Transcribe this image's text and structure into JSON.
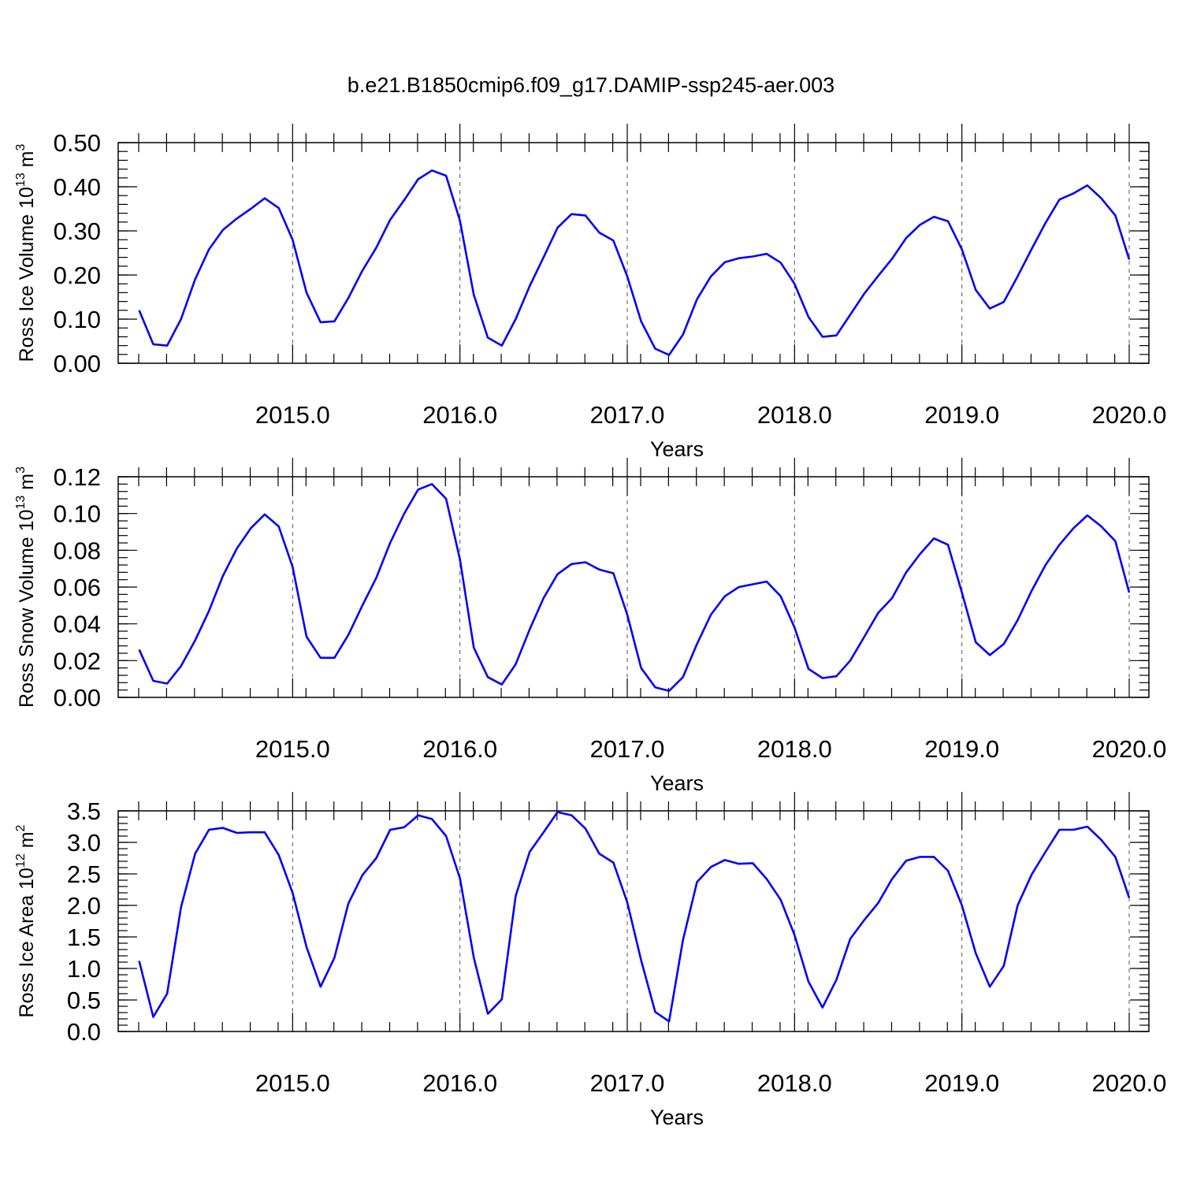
{
  "title": "b.e21.B1850cmip6.f09_g17.DAMIP-ssp245-aer.003",
  "line_color": "#0000ff",
  "chart_data": [
    {
      "type": "line",
      "ylabel": "Ross Ice Volume 10",
      "ylabel_exp": "13",
      "ylabel_unit": "m",
      "ylabel_unit_exp": "3",
      "xlabel": "Years",
      "xlim": [
        2014.08,
        2020.0
      ],
      "ylim": [
        0.0,
        0.5
      ],
      "xticks": [
        2015.0,
        2016.0,
        2017.0,
        2018.0,
        2019.0,
        2020.0
      ],
      "xtick_labels": [
        "2015.0",
        "2016.0",
        "2017.0",
        "2018.0",
        "2019.0",
        "2020.0"
      ],
      "yticks": [
        0.0,
        0.1,
        0.2,
        0.3,
        0.4,
        0.5
      ],
      "ytick_labels": [
        "0.00",
        "0.10",
        "0.20",
        "0.30",
        "0.40",
        "0.50"
      ],
      "yminor": 0.02,
      "x": [
        2014.083,
        2014.167,
        2014.25,
        2014.333,
        2014.417,
        2014.5,
        2014.583,
        2014.667,
        2014.75,
        2014.833,
        2014.917,
        2015.0,
        2015.083,
        2015.167,
        2015.25,
        2015.333,
        2015.417,
        2015.5,
        2015.583,
        2015.667,
        2015.75,
        2015.833,
        2015.917,
        2016.0,
        2016.083,
        2016.167,
        2016.25,
        2016.333,
        2016.417,
        2016.5,
        2016.583,
        2016.667,
        2016.75,
        2016.833,
        2016.917,
        2017.0,
        2017.083,
        2017.167,
        2017.25,
        2017.333,
        2017.417,
        2017.5,
        2017.583,
        2017.667,
        2017.75,
        2017.833,
        2017.917,
        2018.0,
        2018.083,
        2018.167,
        2018.25,
        2018.333,
        2018.417,
        2018.5,
        2018.583,
        2018.667,
        2018.75,
        2018.833,
        2018.917,
        2019.0,
        2019.083,
        2019.167,
        2019.25,
        2019.333,
        2019.417,
        2019.5,
        2019.583,
        2019.667,
        2019.75,
        2019.833,
        2019.917,
        2020.0
      ],
      "series": [
        {
          "values": [
            0.12,
            0.043,
            0.04,
            0.1,
            0.19,
            0.258,
            0.302,
            0.328,
            0.35,
            0.374,
            0.352,
            0.28,
            0.16,
            0.093,
            0.095,
            0.148,
            0.21,
            0.262,
            0.325,
            0.37,
            0.417,
            0.437,
            0.425,
            0.323,
            0.155,
            0.058,
            0.04,
            0.1,
            0.175,
            0.24,
            0.307,
            0.338,
            0.335,
            0.296,
            0.278,
            0.197,
            0.095,
            0.033,
            0.019,
            0.065,
            0.145,
            0.197,
            0.229,
            0.238,
            0.242,
            0.248,
            0.228,
            0.18,
            0.105,
            0.06,
            0.063,
            0.11,
            0.158,
            0.198,
            0.237,
            0.284,
            0.314,
            0.332,
            0.322,
            0.258,
            0.166,
            0.124,
            0.139,
            0.197,
            0.259,
            0.318,
            0.371,
            0.385,
            0.403,
            0.374,
            0.335,
            0.235
          ]
        }
      ]
    },
    {
      "type": "line",
      "ylabel": "Ross Snow Volume 10",
      "ylabel_exp": "13",
      "ylabel_unit": "m",
      "ylabel_unit_exp": "3",
      "xlabel": "Years",
      "xlim": [
        2014.08,
        2020.0
      ],
      "ylim": [
        0.0,
        0.12
      ],
      "xticks": [
        2015.0,
        2016.0,
        2017.0,
        2018.0,
        2019.0,
        2020.0
      ],
      "xtick_labels": [
        "2015.0",
        "2016.0",
        "2017.0",
        "2018.0",
        "2019.0",
        "2020.0"
      ],
      "yticks": [
        0.0,
        0.02,
        0.04,
        0.06,
        0.08,
        0.1,
        0.12
      ],
      "ytick_labels": [
        "0.00",
        "0.02",
        "0.04",
        "0.06",
        "0.08",
        "0.10",
        "0.12"
      ],
      "yminor": 0.004,
      "x": [
        2014.083,
        2014.167,
        2014.25,
        2014.333,
        2014.417,
        2014.5,
        2014.583,
        2014.667,
        2014.75,
        2014.833,
        2014.917,
        2015.0,
        2015.083,
        2015.167,
        2015.25,
        2015.333,
        2015.417,
        2015.5,
        2015.583,
        2015.667,
        2015.75,
        2015.833,
        2015.917,
        2016.0,
        2016.083,
        2016.167,
        2016.25,
        2016.333,
        2016.417,
        2016.5,
        2016.583,
        2016.667,
        2016.75,
        2016.833,
        2016.917,
        2017.0,
        2017.083,
        2017.167,
        2017.25,
        2017.333,
        2017.417,
        2017.5,
        2017.583,
        2017.667,
        2017.75,
        2017.833,
        2017.917,
        2018.0,
        2018.083,
        2018.167,
        2018.25,
        2018.333,
        2018.417,
        2018.5,
        2018.583,
        2018.667,
        2018.75,
        2018.833,
        2018.917,
        2019.0,
        2019.083,
        2019.167,
        2019.25,
        2019.333,
        2019.417,
        2019.5,
        2019.583,
        2019.667,
        2019.75,
        2019.833,
        2019.917,
        2020.0
      ],
      "series": [
        {
          "values": [
            0.026,
            0.009,
            0.0075,
            0.017,
            0.031,
            0.047,
            0.066,
            0.081,
            0.092,
            0.0995,
            0.093,
            0.071,
            0.033,
            0.0215,
            0.0215,
            0.034,
            0.05,
            0.065,
            0.084,
            0.1,
            0.113,
            0.116,
            0.108,
            0.075,
            0.027,
            0.011,
            0.007,
            0.018,
            0.037,
            0.054,
            0.067,
            0.0725,
            0.0735,
            0.0695,
            0.0675,
            0.045,
            0.016,
            0.0055,
            0.0035,
            0.011,
            0.029,
            0.045,
            0.055,
            0.06,
            0.0615,
            0.063,
            0.055,
            0.038,
            0.0155,
            0.0105,
            0.0115,
            0.02,
            0.033,
            0.046,
            0.054,
            0.068,
            0.078,
            0.0865,
            0.083,
            0.057,
            0.03,
            0.023,
            0.029,
            0.042,
            0.058,
            0.072,
            0.083,
            0.092,
            0.099,
            0.093,
            0.085,
            0.057
          ]
        }
      ]
    },
    {
      "type": "line",
      "ylabel": "Ross Ice Area 10",
      "ylabel_exp": "12",
      "ylabel_unit": "m",
      "ylabel_unit_exp": "2",
      "xlabel": "Years",
      "xlim": [
        2014.08,
        2020.0
      ],
      "ylim": [
        0.0,
        3.5
      ],
      "xticks": [
        2015.0,
        2016.0,
        2017.0,
        2018.0,
        2019.0,
        2020.0
      ],
      "xtick_labels": [
        "2015.0",
        "2016.0",
        "2017.0",
        "2018.0",
        "2019.0",
        "2020.0"
      ],
      "yticks": [
        0.0,
        0.5,
        1.0,
        1.5,
        2.0,
        2.5,
        3.0,
        3.5
      ],
      "ytick_labels": [
        "0.0",
        "0.5",
        "1.0",
        "1.5",
        "2.0",
        "2.5",
        "3.0",
        "3.5"
      ],
      "yminor": 0.1,
      "x": [
        2014.083,
        2014.167,
        2014.25,
        2014.333,
        2014.417,
        2014.5,
        2014.583,
        2014.667,
        2014.75,
        2014.833,
        2014.917,
        2015.0,
        2015.083,
        2015.167,
        2015.25,
        2015.333,
        2015.417,
        2015.5,
        2015.583,
        2015.667,
        2015.75,
        2015.833,
        2015.917,
        2016.0,
        2016.083,
        2016.167,
        2016.25,
        2016.333,
        2016.417,
        2016.5,
        2016.583,
        2016.667,
        2016.75,
        2016.833,
        2016.917,
        2017.0,
        2017.083,
        2017.167,
        2017.25,
        2017.333,
        2017.417,
        2017.5,
        2017.583,
        2017.667,
        2017.75,
        2017.833,
        2017.917,
        2018.0,
        2018.083,
        2018.167,
        2018.25,
        2018.333,
        2018.417,
        2018.5,
        2018.583,
        2018.667,
        2018.75,
        2018.833,
        2018.917,
        2019.0,
        2019.083,
        2019.167,
        2019.25,
        2019.333,
        2019.417,
        2019.5,
        2019.583,
        2019.667,
        2019.75,
        2019.833,
        2019.917,
        2020.0
      ],
      "series": [
        {
          "values": [
            1.12,
            0.23,
            0.6,
            1.97,
            2.82,
            3.2,
            3.23,
            3.15,
            3.16,
            3.16,
            2.8,
            2.2,
            1.34,
            0.71,
            1.17,
            2.03,
            2.48,
            2.75,
            3.2,
            3.24,
            3.43,
            3.37,
            3.1,
            2.43,
            1.17,
            0.28,
            0.51,
            2.15,
            2.85,
            3.16,
            3.48,
            3.43,
            3.22,
            2.82,
            2.68,
            2.05,
            1.13,
            0.31,
            0.16,
            1.45,
            2.37,
            2.61,
            2.72,
            2.66,
            2.67,
            2.42,
            2.09,
            1.53,
            0.79,
            0.38,
            0.82,
            1.47,
            1.77,
            2.04,
            2.42,
            2.71,
            2.77,
            2.77,
            2.55,
            2.0,
            1.24,
            0.71,
            1.04,
            2.0,
            2.49,
            2.85,
            3.2,
            3.2,
            3.25,
            3.04,
            2.77,
            2.12
          ]
        }
      ]
    }
  ]
}
